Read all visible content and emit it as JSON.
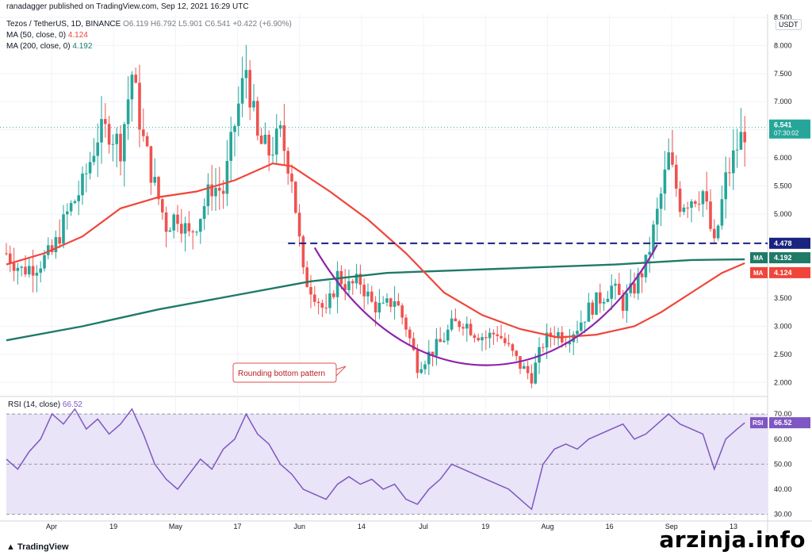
{
  "header": {
    "publisher": "ranadagger published on TradingView.com, Sep 12, 2021 16:29 UTC",
    "symbol": "Tezos / TetherUS, 1D, BINANCE",
    "ohlc": "O6.119  H6.792  L5.901  C6.541  +0.422 (+6.90%)",
    "ma50_label": "MA (50, close, 0)",
    "ma50_value": "4.124",
    "ma200_label": "MA (200, close, 0)",
    "ma200_value": "4.192",
    "rsi_label": "RSI (14, close)",
    "rsi_value": "66.52",
    "currency": "USDT",
    "brand": "TradingView",
    "watermark": "arzinja.info"
  },
  "colors": {
    "up": "#26a69a",
    "down": "#ef5350",
    "ma50": "#f0453a",
    "ma200": "#1f7a68",
    "pattern": "#8e24aa",
    "support": "#1a237e",
    "rsi": "#7e57c2",
    "rsi_band": "#e9e4f7",
    "annotation_border": "#e05050",
    "annotation_text": "#b71c1c"
  },
  "chart_data": [
    {
      "type": "candlestick",
      "title": "Tezos / TetherUS, 1D, BINANCE",
      "ylim": [
        1.75,
        8.5
      ],
      "y_ticks": [
        "8.500",
        "8.000",
        "7.500",
        "7.000",
        "6.500",
        "6.000",
        "5.500",
        "5.000",
        "4.500",
        "4.000",
        "3.500",
        "3.000",
        "2.500",
        "2.000"
      ],
      "x_ticks": [
        "Apr",
        "19",
        "May",
        "17",
        "Jun",
        "14",
        "Jul",
        "19",
        "Aug",
        "16",
        "Sep",
        "13"
      ],
      "price_tag": {
        "value": 6.541,
        "label": "6.541",
        "countdown": "07:30:02"
      },
      "ma_tags": [
        {
          "name": "MA",
          "value": 4.192,
          "label": "4.192"
        },
        {
          "name": "MA",
          "value": 4.124,
          "label": "4.124"
        }
      ],
      "support_level": {
        "value": 4.478,
        "label": "4.478"
      },
      "annotation": {
        "text": "Rounding bottom pattern"
      },
      "price_path": [
        [
          0,
          4.3
        ],
        [
          4,
          4.0
        ],
        [
          8,
          4.1
        ],
        [
          12,
          4.3
        ],
        [
          16,
          5.0
        ],
        [
          20,
          5.5
        ],
        [
          24,
          6.4
        ],
        [
          27,
          6.5
        ],
        [
          30,
          6.2
        ],
        [
          33,
          7.5
        ],
        [
          36,
          6.3
        ],
        [
          39,
          5.5
        ],
        [
          42,
          4.8
        ],
        [
          45,
          5.0
        ],
        [
          48,
          4.6
        ],
        [
          51,
          5.0
        ],
        [
          54,
          5.5
        ],
        [
          57,
          5.4
        ],
        [
          60,
          6.6
        ],
        [
          63,
          7.6
        ],
        [
          66,
          6.3
        ],
        [
          69,
          6.1
        ],
        [
          72,
          6.4
        ],
        [
          75,
          5.7
        ],
        [
          78,
          3.9
        ],
        [
          81,
          3.6
        ],
        [
          84,
          3.2
        ],
        [
          87,
          3.9
        ],
        [
          90,
          3.7
        ],
        [
          93,
          3.8
        ],
        [
          96,
          3.4
        ],
        [
          99,
          3.3
        ],
        [
          102,
          3.5
        ],
        [
          105,
          3.0
        ],
        [
          108,
          2.3
        ],
        [
          111,
          2.5
        ],
        [
          114,
          2.7
        ],
        [
          117,
          3.0
        ],
        [
          120,
          3.1
        ],
        [
          123,
          2.9
        ],
        [
          126,
          2.8
        ],
        [
          129,
          2.9
        ],
        [
          132,
          2.6
        ],
        [
          135,
          2.3
        ],
        [
          138,
          2.1
        ],
        [
          141,
          2.7
        ],
        [
          144,
          2.9
        ],
        [
          147,
          2.8
        ],
        [
          150,
          3.0
        ],
        [
          153,
          3.3
        ],
        [
          156,
          3.5
        ],
        [
          159,
          3.7
        ],
        [
          162,
          3.4
        ],
        [
          165,
          3.7
        ],
        [
          168,
          4.1
        ],
        [
          171,
          5.0
        ],
        [
          174,
          6.0
        ],
        [
          177,
          5.2
        ],
        [
          180,
          5.3
        ],
        [
          183,
          5.4
        ],
        [
          186,
          4.4
        ],
        [
          189,
          5.6
        ],
        [
          192,
          6.2
        ],
        [
          194,
          6.5
        ]
      ],
      "ma50_path": [
        [
          0,
          4.1
        ],
        [
          10,
          4.3
        ],
        [
          20,
          4.6
        ],
        [
          30,
          5.1
        ],
        [
          40,
          5.3
        ],
        [
          50,
          5.4
        ],
        [
          60,
          5.6
        ],
        [
          70,
          5.9
        ],
        [
          75,
          5.85
        ],
        [
          85,
          5.4
        ],
        [
          95,
          4.9
        ],
        [
          105,
          4.3
        ],
        [
          115,
          3.6
        ],
        [
          125,
          3.2
        ],
        [
          135,
          2.95
        ],
        [
          145,
          2.8
        ],
        [
          155,
          2.85
        ],
        [
          165,
          3.0
        ],
        [
          172,
          3.25
        ],
        [
          180,
          3.6
        ],
        [
          188,
          3.95
        ],
        [
          194,
          4.124
        ]
      ],
      "ma200_path": [
        [
          0,
          2.75
        ],
        [
          20,
          3.0
        ],
        [
          40,
          3.3
        ],
        [
          60,
          3.55
        ],
        [
          80,
          3.8
        ],
        [
          100,
          3.95
        ],
        [
          120,
          4.0
        ],
        [
          140,
          4.05
        ],
        [
          160,
          4.1
        ],
        [
          180,
          4.18
        ],
        [
          194,
          4.192
        ]
      ]
    },
    {
      "type": "line",
      "title": "RSI (14, close)",
      "ylim": [
        28,
        77
      ],
      "y_ticks": [
        "70.00",
        "60.00",
        "50.00",
        "40.00",
        "30.00"
      ],
      "band": [
        30,
        70
      ],
      "midline": 50,
      "last": {
        "value": 66.52,
        "label": "66.52",
        "name": "RSI"
      },
      "x": [
        0,
        3,
        6,
        9,
        12,
        15,
        18,
        21,
        24,
        27,
        30,
        33,
        36,
        39,
        42,
        45,
        48,
        51,
        54,
        57,
        60,
        63,
        66,
        69,
        72,
        75,
        78,
        81,
        84,
        87,
        90,
        93,
        96,
        99,
        102,
        105,
        108,
        111,
        114,
        117,
        120,
        123,
        126,
        129,
        132,
        135,
        138,
        141,
        144,
        147,
        150,
        153,
        156,
        159,
        162,
        165,
        168,
        171,
        174,
        177,
        180,
        183,
        186,
        189,
        192,
        194
      ],
      "y": [
        52,
        48,
        55,
        60,
        70,
        66,
        72,
        64,
        68,
        62,
        66,
        72,
        62,
        50,
        44,
        40,
        46,
        52,
        48,
        56,
        60,
        70,
        62,
        58,
        50,
        46,
        40,
        38,
        36,
        42,
        45,
        42,
        44,
        40,
        42,
        36,
        34,
        40,
        44,
        50,
        48,
        46,
        44,
        42,
        40,
        36,
        32,
        50,
        56,
        58,
        56,
        60,
        62,
        64,
        66,
        60,
        62,
        66,
        70,
        66,
        64,
        62,
        48,
        60,
        64,
        66.52
      ]
    }
  ]
}
